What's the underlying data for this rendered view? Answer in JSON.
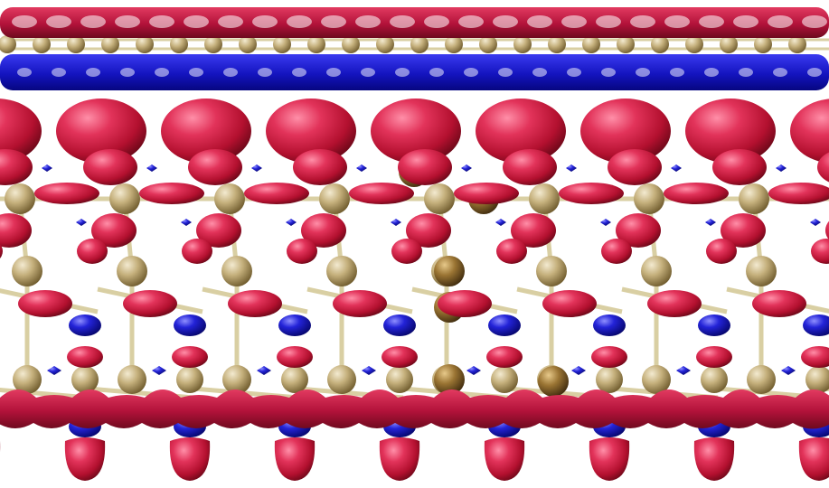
{
  "image": {
    "kind": "3D molecular render",
    "palette": {
      "background": "#ffffff",
      "positive_lobe": "#c8163e",
      "positive_highlight": "#ff6f8e",
      "negative_lobe": "#1010b8",
      "negative_highlight": "#6e6eff",
      "atom": "#c3ae7a",
      "atom_dark": "#8a6a2a",
      "bond": "#d9cfa3"
    }
  }
}
